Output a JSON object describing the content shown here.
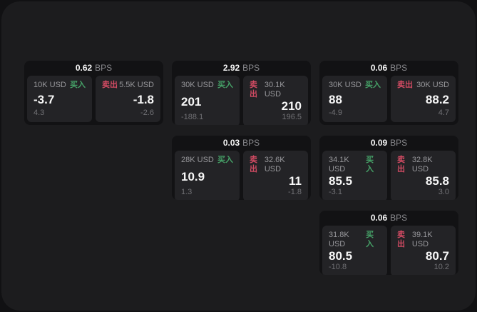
{
  "labels": {
    "bps_unit": "BPS",
    "buy": "买入",
    "sell": "卖出"
  },
  "colors": {
    "outer_bg": "#111113",
    "page_bg": "#1c1c1e",
    "card_bg": "#121214",
    "panel_bg": "#232326",
    "buy_green": "#46a268",
    "sell_red": "#d24b63"
  },
  "cards": [
    {
      "bps": "0.62",
      "col": 1,
      "row": 1,
      "buy": {
        "notional": "10K USD",
        "price": "-3.7",
        "sub": "4.3"
      },
      "sell": {
        "notional": "5.5K USD",
        "price": "-1.8",
        "sub": "-2.6"
      }
    },
    {
      "bps": "2.92",
      "col": 2,
      "row": 1,
      "buy": {
        "notional": "30K USD",
        "price": "201",
        "sub": "-188.1"
      },
      "sell": {
        "notional": "30.1K USD",
        "price": "210",
        "sub": "196.5"
      }
    },
    {
      "bps": "0.06",
      "col": 3,
      "row": 1,
      "buy": {
        "notional": "30K USD",
        "price": "88",
        "sub": "-4.9"
      },
      "sell": {
        "notional": "30K USD",
        "price": "88.2",
        "sub": "4.7"
      }
    },
    {
      "bps": "0.03",
      "col": 2,
      "row": 2,
      "buy": {
        "notional": "28K USD",
        "price": "10.9",
        "sub": "1.3"
      },
      "sell": {
        "notional": "32.6K USD",
        "price": "11",
        "sub": "-1.8"
      }
    },
    {
      "bps": "0.09",
      "col": 3,
      "row": 2,
      "buy": {
        "notional": "34.1K USD",
        "price": "85.5",
        "sub": "-3.1"
      },
      "sell": {
        "notional": "32.8K USD",
        "price": "85.8",
        "sub": "3.0"
      }
    },
    {
      "bps": "0.06",
      "col": 3,
      "row": 3,
      "buy": {
        "notional": "31.8K USD",
        "price": "80.5",
        "sub": "-10.8"
      },
      "sell": {
        "notional": "39.1K USD",
        "price": "80.7",
        "sub": "10.2"
      }
    }
  ]
}
